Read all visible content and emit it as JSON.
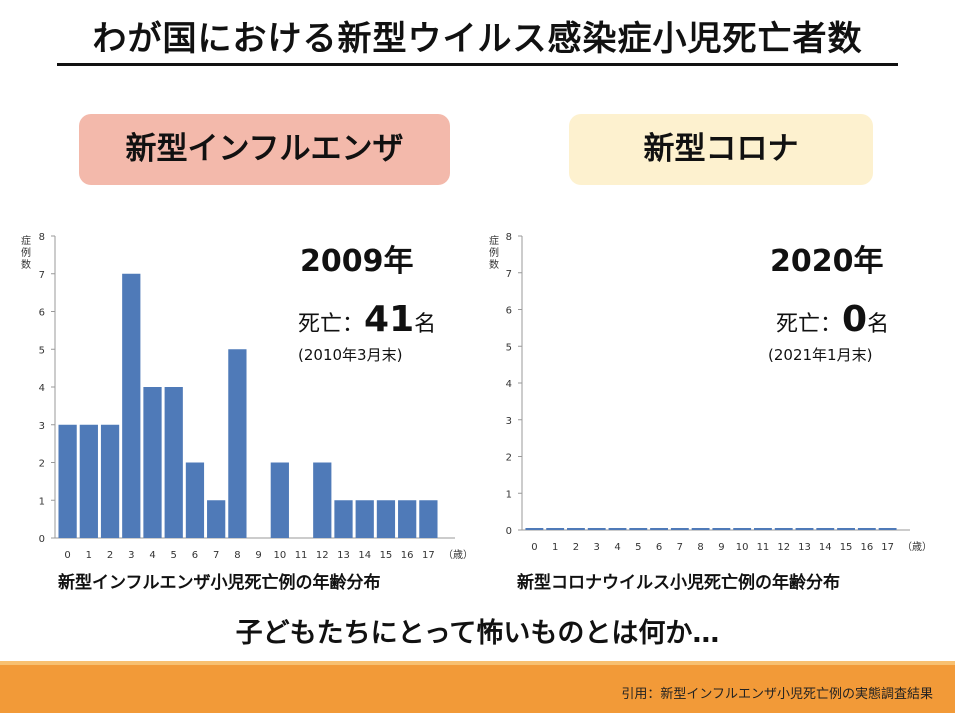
{
  "title": "わが国における新型ウイルス感染症小児死亡者数",
  "panels": {
    "flu": {
      "label": "新型インフルエンザ",
      "year": "2009年",
      "death_prefix": "死亡：",
      "death_count": "41",
      "death_unit": "名",
      "as_of": "(2010年3月末)",
      "caption": "新型インフルエンザ小児死亡例の年齢分布"
    },
    "covid": {
      "label": "新型コロナ",
      "year": "2020年",
      "death_prefix": "死亡：",
      "death_count": "0",
      "death_unit": "名",
      "as_of": "(2021年1月末)",
      "caption": "新型コロナウイルス小児死亡例の年齢分布"
    }
  },
  "chart_data": [
    {
      "type": "bar",
      "title": "新型インフルエンザ小児死亡例の年齢分布",
      "ylabel": "症例数",
      "xlabel": "（歳）",
      "categories": [
        "0",
        "1",
        "2",
        "3",
        "4",
        "5",
        "6",
        "7",
        "8",
        "9",
        "10",
        "11",
        "12",
        "13",
        "14",
        "15",
        "16",
        "17"
      ],
      "values": [
        3,
        3,
        3,
        7,
        4,
        4,
        2,
        1,
        5,
        0,
        2,
        0,
        2,
        1,
        1,
        1,
        1,
        1
      ],
      "ylim": [
        0,
        8
      ],
      "yticks": [
        "0",
        "1",
        "2",
        "3",
        "4",
        "5",
        "6",
        "7",
        "8"
      ],
      "color": "#4f7ab8"
    },
    {
      "type": "bar",
      "title": "新型コロナウイルス小児死亡例の年齢分布",
      "ylabel": "症例数",
      "xlabel": "（歳）",
      "categories": [
        "0",
        "1",
        "2",
        "3",
        "4",
        "5",
        "6",
        "7",
        "8",
        "9",
        "10",
        "11",
        "12",
        "13",
        "14",
        "15",
        "16",
        "17"
      ],
      "values": [
        0,
        0,
        0,
        0,
        0,
        0,
        0,
        0,
        0,
        0,
        0,
        0,
        0,
        0,
        0,
        0,
        0,
        0
      ],
      "ylim": [
        0,
        8
      ],
      "yticks": [
        "0",
        "1",
        "2",
        "3",
        "4",
        "5",
        "6",
        "7",
        "8"
      ],
      "color": "#4f7ab8"
    }
  ],
  "conclusion": "子どもたちにとって怖いものとは何か…",
  "footer": "引用：新型インフルエンザ小児死亡例の実態調査結果"
}
